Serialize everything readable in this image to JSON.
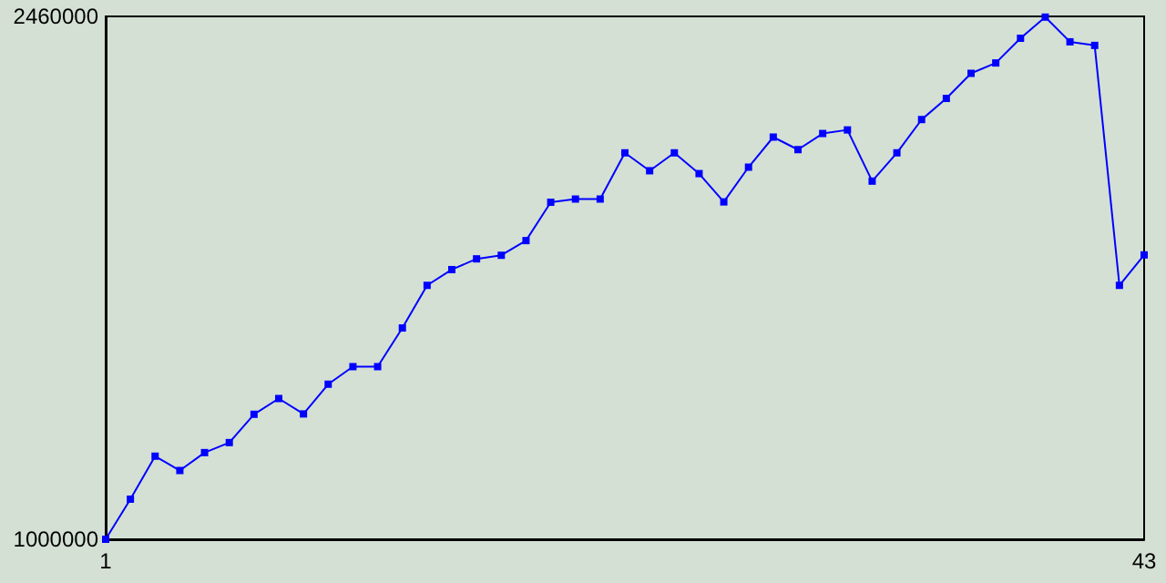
{
  "chart_data": {
    "type": "line",
    "x": [
      1,
      2,
      3,
      4,
      5,
      6,
      7,
      8,
      9,
      10,
      11,
      12,
      13,
      14,
      15,
      16,
      17,
      18,
      19,
      20,
      21,
      22,
      23,
      24,
      25,
      26,
      27,
      28,
      29,
      30,
      31,
      32,
      33,
      34,
      35,
      36,
      37,
      38,
      39,
      40,
      41,
      42,
      43
    ],
    "series": [
      {
        "color": "#0000ff",
        "values": [
          1000000,
          1112000,
          1232000,
          1192000,
          1242000,
          1270000,
          1349000,
          1393000,
          1350000,
          1433000,
          1482000,
          1482000,
          1590000,
          1709000,
          1753000,
          1783000,
          1793000,
          1834000,
          1941000,
          1950000,
          1950000,
          2079000,
          2029000,
          2079000,
          2021000,
          1942000,
          2039000,
          2123000,
          2088000,
          2133000,
          2143000,
          2000000,
          2079000,
          2172000,
          2231000,
          2301000,
          2330000,
          2399000,
          2458000,
          2389000,
          2379000,
          1709000,
          1794000
        ]
      }
    ],
    "xlim": [
      1,
      43
    ],
    "xticks": [
      1,
      43
    ],
    "ylim": [
      1000000,
      2460000
    ],
    "yticks": [
      1000000,
      2460000
    ],
    "grid": false,
    "marker": "square",
    "line_style": "solid"
  }
}
